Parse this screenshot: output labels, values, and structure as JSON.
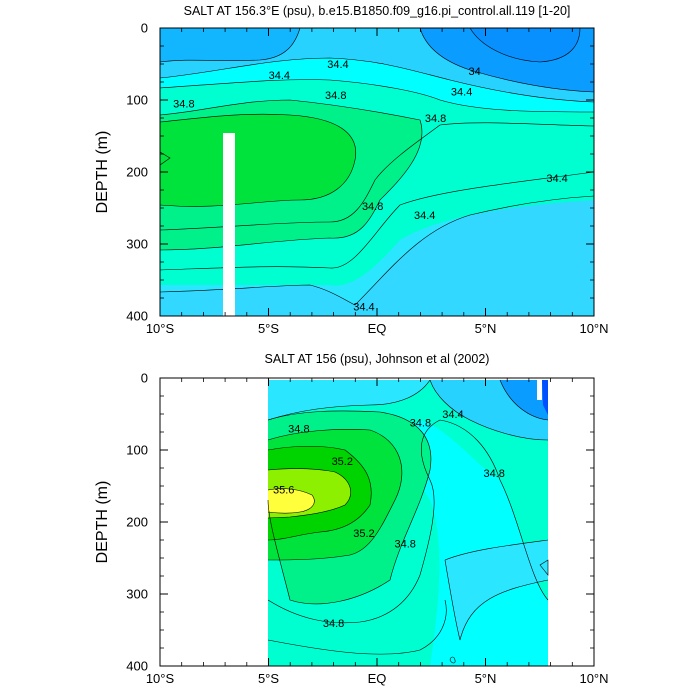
{
  "chart_data": [
    {
      "type": "contour",
      "title": "SALT AT 156.3°E (psu), b.e15.B1850.f09_g16.pi_control.all.119 [1-20]",
      "ylabel": "DEPTH (m)",
      "xlim": [
        -10,
        10
      ],
      "ylim": [
        400,
        0
      ],
      "x_ticks": [
        "10°S",
        "5°S",
        "EQ",
        "5°N",
        "10°N"
      ],
      "y_ticks": [
        "0",
        "100",
        "200",
        "300",
        "400"
      ],
      "contour_labels": [
        {
          "text": "34.4",
          "x": -4.5,
          "depth": 65
        },
        {
          "text": "34.4",
          "x": -1.8,
          "depth": 50
        },
        {
          "text": "34",
          "x": 4.5,
          "depth": 60
        },
        {
          "text": "34.4",
          "x": 3.9,
          "depth": 88
        },
        {
          "text": "34.8",
          "x": -8.9,
          "depth": 105
        },
        {
          "text": "34.8",
          "x": -1.9,
          "depth": 93
        },
        {
          "text": "34.8",
          "x": 2.7,
          "depth": 125
        },
        {
          "text": "34.8",
          "x": -0.2,
          "depth": 247
        },
        {
          "text": "34.4",
          "x": 2.2,
          "depth": 260
        },
        {
          "text": "34.4",
          "x": 8.3,
          "depth": 208
        },
        {
          "text": "34.4",
          "x": -0.6,
          "depth": 387
        }
      ]
    },
    {
      "type": "contour",
      "title": "SALT AT 156 (psu), Johnson et al (2002)",
      "ylabel": "DEPTH (m)",
      "xlim": [
        -10,
        10
      ],
      "ylim": [
        400,
        0
      ],
      "x_ticks": [
        "10°S",
        "5°S",
        "EQ",
        "5°N",
        "10°N"
      ],
      "y_ticks": [
        "0",
        "100",
        "200",
        "300",
        "400"
      ],
      "data_extent_x": [
        -5,
        8
      ],
      "contour_labels": [
        {
          "text": "34.4",
          "x": 3.5,
          "depth": 50
        },
        {
          "text": "34.8",
          "x": -3.6,
          "depth": 70
        },
        {
          "text": "34.8",
          "x": 2.0,
          "depth": 62
        },
        {
          "text": "35.2",
          "x": -1.6,
          "depth": 115
        },
        {
          "text": "34.8",
          "x": 5.4,
          "depth": 132
        },
        {
          "text": "35.6",
          "x": -4.3,
          "depth": 155
        },
        {
          "text": "35.2",
          "x": -0.6,
          "depth": 215
        },
        {
          "text": "34.8",
          "x": 1.3,
          "depth": 230
        },
        {
          "text": "34.8",
          "x": -2.0,
          "depth": 340
        }
      ]
    }
  ]
}
